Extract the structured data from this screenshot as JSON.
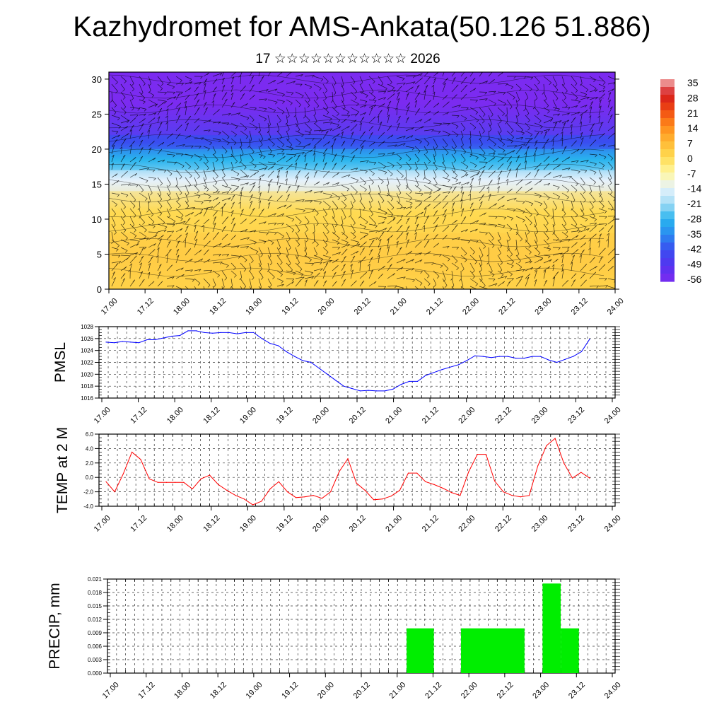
{
  "title": "Kazhydromet for AMS-Ankata(50.126 51.886)",
  "subtitle": "17 ☆☆☆☆☆☆☆☆☆☆☆ 2026",
  "time_labels": [
    "17.00",
    "17.12",
    "18.00",
    "18.12",
    "19.00",
    "19.12",
    "20.00",
    "20.12",
    "21.00",
    "21.12",
    "22.00",
    "22.12",
    "23.00",
    "23.12",
    "24.00"
  ],
  "colors": {
    "pmsl": "#0000ff",
    "temp": "#ff0000",
    "precip": "#00ee00",
    "grid": "#000000"
  },
  "chart_data": [
    {
      "type": "heatmap",
      "name": "cross-section",
      "y_ticks": [
        "0",
        "5",
        "10",
        "15",
        "20",
        "25",
        "30"
      ],
      "ylim": [
        0,
        31
      ],
      "colorbar_labels": [
        "35",
        "28",
        "21",
        "14",
        "7",
        "0",
        "-7",
        "-14",
        "-21",
        "-28",
        "-35",
        "-42",
        "-49",
        "-56"
      ],
      "colorbar_range": [
        -56,
        35
      ],
      "layers": [
        {
          "from": 0,
          "to": 2,
          "value": 2
        },
        {
          "from": 2,
          "to": 8,
          "value": 3
        },
        {
          "from": 8,
          "to": 14,
          "value": 0
        },
        {
          "from": 14,
          "to": 17,
          "value": -14
        },
        {
          "from": 17,
          "to": 20,
          "value": -28
        },
        {
          "from": 20,
          "to": 22,
          "value": -42
        },
        {
          "from": 22,
          "to": 31,
          "value": -56
        }
      ]
    },
    {
      "type": "line",
      "name": "PMSL",
      "ylabel": "PMSL",
      "ylim": [
        1016,
        1028
      ],
      "y_ticks": [
        "1016",
        "1018",
        "1020",
        "1022",
        "1024",
        "1026",
        "1028"
      ],
      "x_step_hours": 3,
      "values": [
        1025.4,
        1025.3,
        1025.5,
        1025.4,
        1025.3,
        1025.8,
        1025.8,
        1026.1,
        1026.4,
        1026.5,
        1027.3,
        1027.3,
        1027.0,
        1026.9,
        1027.0,
        1027.0,
        1026.8,
        1027.0,
        1027.0,
        1026.0,
        1025.2,
        1024.8,
        1023.8,
        1023.0,
        1022.3,
        1022.0,
        1021.0,
        1020.0,
        1019.0,
        1018.0,
        1017.6,
        1017.2,
        1017.3,
        1017.2,
        1017.2,
        1017.5,
        1018.3,
        1018.8,
        1018.8,
        1019.8,
        1020.3,
        1020.8,
        1021.2,
        1021.6,
        1022.3,
        1023.1,
        1023.0,
        1022.8,
        1023.0,
        1023.0,
        1022.7,
        1022.7,
        1023.0,
        1023.0,
        1022.4,
        1022.0,
        1022.5,
        1023.0,
        1023.8,
        1025.9
      ]
    },
    {
      "type": "line",
      "name": "TEMP at 2 M",
      "ylabel": "TEMP at 2 M",
      "ylim": [
        -4,
        6
      ],
      "y_ticks": [
        "-4.0",
        "-2.0",
        "0.0",
        "2.0",
        "4.0",
        "6.0"
      ],
      "x_step_hours": 3,
      "values": [
        -0.6,
        -2.0,
        0.5,
        3.5,
        2.5,
        -0.2,
        -0.7,
        -0.7,
        -0.7,
        -0.7,
        -1.6,
        -0.2,
        0.3,
        -1.0,
        -1.8,
        -2.5,
        -3.0,
        -3.8,
        -3.3,
        -1.6,
        -0.6,
        -2.0,
        -2.8,
        -2.7,
        -2.5,
        -2.9,
        -2.0,
        0.8,
        2.6,
        -0.8,
        -1.8,
        -3.1,
        -3.0,
        -2.6,
        -1.8,
        0.6,
        0.6,
        -0.6,
        -1.0,
        -1.5,
        -2.1,
        -2.5,
        0.8,
        3.2,
        3.2,
        -0.5,
        -2.0,
        -2.5,
        -2.7,
        -2.5,
        1.6,
        4.4,
        5.4,
        2.0,
        -0.1,
        0.7,
        -0.1
      ]
    },
    {
      "type": "bar",
      "name": "PRECIP, mm",
      "ylabel": "PRECIP, mm",
      "ylim": [
        0,
        0.021
      ],
      "y_ticks": [
        "0.000",
        "0.003",
        "0.006",
        "0.009",
        "0.012",
        "0.015",
        "0.018",
        "0.021"
      ],
      "bars": [
        {
          "start": 33,
          "end": 36,
          "value": 0.01
        },
        {
          "start": 39,
          "end": 46,
          "value": 0.01
        },
        {
          "start": 48,
          "end": 50,
          "value": 0.02
        },
        {
          "start": 50,
          "end": 52,
          "value": 0.01
        }
      ]
    }
  ]
}
